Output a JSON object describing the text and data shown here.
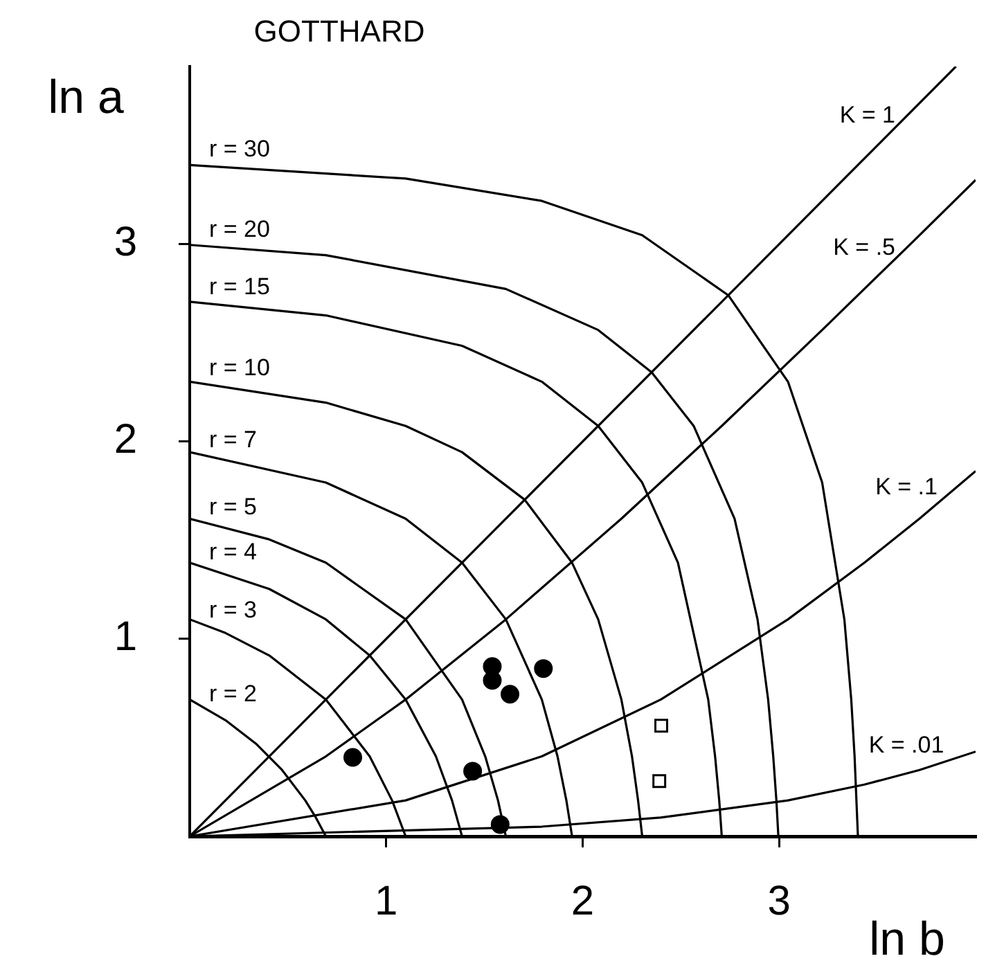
{
  "chart_data": {
    "type": "line",
    "title": "GOTTHARD",
    "xlabel": "ln b",
    "ylabel": "ln a",
    "xlim": [
      0,
      4
    ],
    "ylim": [
      0,
      3.9
    ],
    "xticks": [
      1,
      2,
      3
    ],
    "yticks": [
      1,
      2,
      3
    ],
    "grid": false,
    "legend": false,
    "marker": "none",
    "line_style": "solid",
    "series": [
      {
        "type": "line",
        "name": "r = 2",
        "color": "#000000",
        "x": [
          0,
          0.182,
          0.336,
          0.47,
          0.588,
          0.642,
          0.693
        ],
        "values": [
          0.693,
          0.588,
          0.47,
          0.336,
          0.182,
          0.095,
          0
        ]
      },
      {
        "type": "line",
        "name": "r = 3",
        "color": "#000000",
        "x": [
          0,
          0.182,
          0.405,
          0.693,
          0.916,
          1.03,
          1.099
        ],
        "values": [
          1.099,
          1.03,
          0.916,
          0.693,
          0.405,
          0.182,
          0
        ]
      },
      {
        "type": "line",
        "name": "r = 4",
        "color": "#000000",
        "x": [
          0,
          0.405,
          0.693,
          0.916,
          1.099,
          1.253,
          1.335,
          1.386
        ],
        "values": [
          1.386,
          1.253,
          1.099,
          0.916,
          0.693,
          0.405,
          0.182,
          0
        ]
      },
      {
        "type": "line",
        "name": "r = 5",
        "color": "#000000",
        "x": [
          0,
          0.405,
          0.693,
          1.099,
          1.386,
          1.504,
          1.569,
          1.609
        ],
        "values": [
          1.609,
          1.504,
          1.386,
          1.099,
          0.693,
          0.405,
          0.182,
          0
        ]
      },
      {
        "type": "line",
        "name": "r = 7",
        "color": "#000000",
        "x": [
          0,
          0.693,
          1.099,
          1.386,
          1.609,
          1.792,
          1.872,
          1.917,
          1.946
        ],
        "values": [
          1.946,
          1.792,
          1.609,
          1.386,
          1.099,
          0.693,
          0.405,
          0.182,
          0
        ]
      },
      {
        "type": "line",
        "name": "r = 10",
        "color": "#000000",
        "x": [
          0,
          0.693,
          1.099,
          1.386,
          1.705,
          1.946,
          2.079,
          2.197,
          2.251,
          2.282,
          2.303
        ],
        "values": [
          2.303,
          2.197,
          2.079,
          1.946,
          1.705,
          1.386,
          1.099,
          0.693,
          0.405,
          0.182,
          0
        ]
      },
      {
        "type": "line",
        "name": "r = 15",
        "color": "#000000",
        "x": [
          0,
          0.693,
          1.386,
          1.792,
          2.079,
          2.303,
          2.485,
          2.639,
          2.674,
          2.695,
          2.708
        ],
        "values": [
          2.708,
          2.639,
          2.485,
          2.303,
          2.079,
          1.792,
          1.386,
          0.693,
          0.405,
          0.182,
          0
        ]
      },
      {
        "type": "line",
        "name": "r = 20",
        "color": "#000000",
        "x": [
          0,
          0.693,
          1.609,
          2.079,
          2.351,
          2.565,
          2.773,
          2.89,
          2.944,
          2.97,
          2.986,
          2.996
        ],
        "values": [
          2.996,
          2.944,
          2.773,
          2.565,
          2.351,
          2.079,
          1.609,
          1.099,
          0.693,
          0.405,
          0.182,
          0
        ]
      },
      {
        "type": "line",
        "name": "r = 30",
        "color": "#000000",
        "x": [
          0,
          1.099,
          1.792,
          2.303,
          2.741,
          3.045,
          3.219,
          3.332,
          3.367,
          3.384,
          3.401
        ],
        "values": [
          3.401,
          3.332,
          3.219,
          3.045,
          2.741,
          2.303,
          1.792,
          1.099,
          0.693,
          0.405,
          0
        ]
      },
      {
        "type": "line",
        "name": "K = 1",
        "color": "#000000",
        "x": [
          0,
          3.9
        ],
        "values": [
          0,
          3.9
        ]
      },
      {
        "type": "line",
        "name": "K = .5",
        "color": "#000000",
        "x": [
          0,
          0.693,
          1.099,
          1.609,
          2.197,
          2.708,
          3.219,
          3.689,
          4
        ],
        "values": [
          0,
          0.405,
          0.693,
          1.099,
          1.609,
          2.079,
          2.565,
          3.02,
          3.325
        ]
      },
      {
        "type": "line",
        "name": "K = .1",
        "color": "#000000",
        "x": [
          0,
          1.099,
          1.792,
          2.398,
          3.045,
          3.434,
          3.714,
          4
        ],
        "values": [
          0,
          0.182,
          0.405,
          0.693,
          1.099,
          1.386,
          1.609,
          1.85
        ]
      },
      {
        "type": "line",
        "name": "K = .01",
        "color": "#000000",
        "x": [
          0,
          1.792,
          2.398,
          3.045,
          3.434,
          3.714,
          4
        ],
        "values": [
          0,
          0.049,
          0.095,
          0.182,
          0.262,
          0.336,
          0.429
        ]
      },
      {
        "type": "scatter",
        "color": "#000000",
        "marker": "circle",
        "x": [
          1.54,
          1.54,
          1.63,
          1.8,
          1.44,
          1.58
        ],
        "values": [
          0.86,
          0.79,
          0.72,
          0.85,
          0.33,
          0.06
        ]
      },
      {
        "type": "scatter",
        "color": "#000000",
        "marker": "circle",
        "x": [
          0.83
        ],
        "values": [
          0.4
        ]
      },
      {
        "type": "scatter",
        "color": "#000000",
        "marker": "square",
        "x": [
          2.4,
          2.39
        ],
        "values": [
          0.56,
          0.28
        ]
      }
    ]
  }
}
